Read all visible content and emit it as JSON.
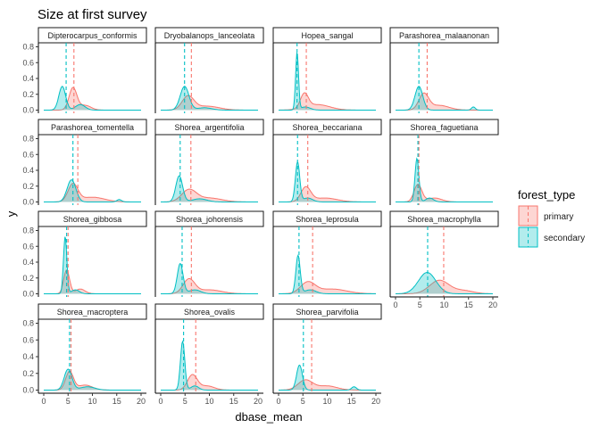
{
  "chart_data": {
    "type": "area",
    "title": "Size at first survey",
    "xlabel": "dbase_mean",
    "ylabel": "y",
    "xlim": [
      0,
      20
    ],
    "ylim": [
      0,
      0.8
    ],
    "x_ticks": [
      "0",
      "5",
      "10",
      "15",
      "20"
    ],
    "y_ticks": [
      "0.0",
      "0.2",
      "0.4",
      "0.6",
      "0.8"
    ],
    "grid": false,
    "legend": {
      "title": "forest_type",
      "position": "right",
      "entries": [
        {
          "label": "primary",
          "color": "#F8766D"
        },
        {
          "label": "secondary",
          "color": "#00BFC4"
        }
      ]
    },
    "facets": [
      {
        "name": "Dipterocarpus_conformis",
        "primary": {
          "mean": 6.2,
          "peaks": [
            [
              6.0,
              0.28,
              0.8
            ],
            [
              8.5,
              0.06,
              1.2
            ]
          ]
        },
        "secondary": {
          "mean": 4.6,
          "peaks": [
            [
              3.8,
              0.3,
              0.7
            ],
            [
              7.5,
              0.07,
              1.0
            ]
          ]
        }
      },
      {
        "name": "Dryobalanops_lanceolata",
        "primary": {
          "mean": 6.3,
          "peaks": [
            [
              5.6,
              0.17,
              1.2
            ],
            [
              9.5,
              0.05,
              2.5
            ]
          ]
        },
        "secondary": {
          "mean": 4.9,
          "peaks": [
            [
              4.9,
              0.3,
              0.9
            ],
            [
              9.0,
              0.03,
              1.5
            ]
          ]
        }
      },
      {
        "name": "Hopea_sangal",
        "primary": {
          "mean": 5.7,
          "peaks": [
            [
              5.3,
              0.18,
              0.8
            ],
            [
              8.0,
              0.07,
              2.5
            ]
          ]
        },
        "secondary": {
          "mean": 3.8,
          "peaks": [
            [
              3.8,
              0.72,
              0.3
            ],
            [
              5.5,
              0.04,
              1.0
            ]
          ]
        }
      },
      {
        "name": "Parashorea_malaanonan",
        "primary": {
          "mean": 6.5,
          "peaks": [
            [
              5.8,
              0.2,
              1.0
            ],
            [
              9.0,
              0.06,
              2.0
            ]
          ]
        },
        "secondary": {
          "mean": 4.8,
          "peaks": [
            [
              4.8,
              0.3,
              0.8
            ],
            [
              16.0,
              0.04,
              0.4
            ]
          ]
        }
      },
      {
        "name": "Parashorea_tomentella",
        "primary": {
          "mean": 7.0,
          "peaks": [
            [
              6.0,
              0.22,
              1.0
            ],
            [
              10.0,
              0.06,
              2.5
            ]
          ]
        },
        "secondary": {
          "mean": 6.0,
          "peaks": [
            [
              5.7,
              0.28,
              0.9
            ],
            [
              15.5,
              0.03,
              0.5
            ]
          ]
        }
      },
      {
        "name": "Shorea_argentifolia",
        "primary": {
          "mean": 6.2,
          "peaks": [
            [
              5.8,
              0.15,
              1.5
            ],
            [
              10.0,
              0.05,
              2.5
            ]
          ]
        },
        "secondary": {
          "mean": 4.0,
          "peaks": [
            [
              3.8,
              0.33,
              0.7
            ],
            [
              8.0,
              0.04,
              1.5
            ]
          ]
        }
      },
      {
        "name": "Shorea_beccariana",
        "primary": {
          "mean": 6.0,
          "peaks": [
            [
              5.6,
              0.18,
              1.0
            ],
            [
              9.5,
              0.05,
              2.5
            ]
          ]
        },
        "secondary": {
          "mean": 3.9,
          "peaks": [
            [
              3.9,
              0.5,
              0.45
            ],
            [
              6.0,
              0.05,
              1.0
            ]
          ]
        }
      },
      {
        "name": "Shorea_faguetiana",
        "primary": {
          "mean": 4.8,
          "peaks": [
            [
              4.6,
              0.22,
              0.8
            ],
            [
              8.0,
              0.05,
              1.5
            ]
          ]
        },
        "secondary": {
          "mean": 4.6,
          "peaks": [
            [
              4.4,
              0.55,
              0.4
            ],
            [
              7.0,
              0.05,
              0.8
            ]
          ]
        }
      },
      {
        "name": "Shorea_gibbosa",
        "primary": {
          "mean": 5.0,
          "peaks": [
            [
              4.7,
              0.3,
              0.6
            ],
            [
              7.5,
              0.06,
              1.0
            ]
          ]
        },
        "secondary": {
          "mean": 4.7,
          "peaks": [
            [
              4.4,
              0.72,
              0.35
            ],
            [
              6.5,
              0.05,
              0.8
            ]
          ]
        }
      },
      {
        "name": "Shorea_johorensis",
        "primary": {
          "mean": 6.3,
          "peaks": [
            [
              5.8,
              0.18,
              1.2
            ],
            [
              10.0,
              0.05,
              2.5
            ]
          ]
        },
        "secondary": {
          "mean": 4.4,
          "peaks": [
            [
              4.0,
              0.38,
              0.6
            ],
            [
              7.0,
              0.05,
              1.2
            ]
          ]
        }
      },
      {
        "name": "Shorea_leprosula",
        "primary": {
          "mean": 7.0,
          "peaks": [
            [
              6.0,
              0.14,
              1.5
            ],
            [
              11.0,
              0.06,
              3.0
            ]
          ]
        },
        "secondary": {
          "mean": 4.2,
          "peaks": [
            [
              4.0,
              0.48,
              0.45
            ],
            [
              6.5,
              0.05,
              1.2
            ]
          ]
        }
      },
      {
        "name": "Shorea_macrophylla",
        "primary": {
          "mean": 9.9,
          "peaks": [
            [
              9.0,
              0.17,
              2.0
            ],
            [
              14.0,
              0.04,
              2.0
            ]
          ]
        },
        "secondary": {
          "mean": 6.6,
          "peaks": [
            [
              6.5,
              0.27,
              1.8
            ]
          ]
        }
      },
      {
        "name": "Shorea_macroptera",
        "primary": {
          "mean": 5.6,
          "peaks": [
            [
              5.3,
              0.22,
              0.8
            ],
            [
              8.5,
              0.06,
              1.5
            ]
          ]
        },
        "secondary": {
          "mean": 5.3,
          "peaks": [
            [
              5.0,
              0.25,
              0.8
            ],
            [
              9.0,
              0.04,
              1.5
            ]
          ]
        }
      },
      {
        "name": "Shorea_ovalis",
        "primary": {
          "mean": 7.2,
          "peaks": [
            [
              6.5,
              0.18,
              1.0
            ],
            [
              9.5,
              0.05,
              1.5
            ]
          ]
        },
        "secondary": {
          "mean": 4.7,
          "peaks": [
            [
              4.5,
              0.58,
              0.45
            ],
            [
              7.0,
              0.05,
              0.8
            ]
          ]
        }
      },
      {
        "name": "Shorea_parvifolia",
        "primary": {
          "mean": 6.8,
          "peaks": [
            [
              5.5,
              0.12,
              1.5
            ],
            [
              10.0,
              0.05,
              2.0
            ]
          ]
        },
        "secondary": {
          "mean": 5.1,
          "peaks": [
            [
              4.3,
              0.3,
              0.6
            ],
            [
              15.5,
              0.04,
              0.5
            ]
          ]
        }
      }
    ]
  }
}
